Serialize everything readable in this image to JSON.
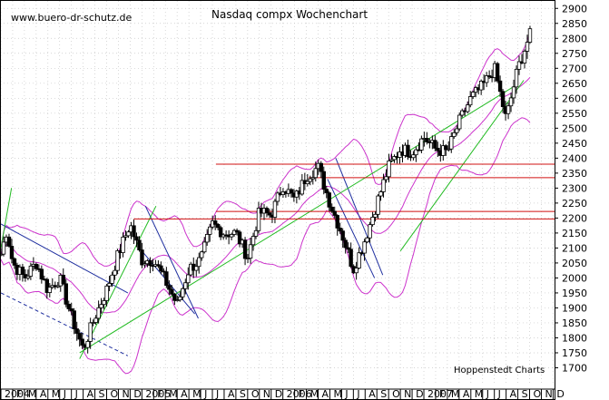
{
  "chart_data": {
    "type": "candlestick",
    "title": "Nasdaq compx Wochenchart",
    "watermark": "www.buero-dr-schutz.de",
    "credit": "Hoppenstedt Charts",
    "y_ticks": [
      1700,
      1750,
      1800,
      1850,
      1900,
      1950,
      2000,
      2050,
      2100,
      2150,
      2200,
      2250,
      2300,
      2350,
      2400,
      2450,
      2500,
      2550,
      2600,
      2650,
      2700,
      2750,
      2800,
      2850,
      2900
    ],
    "ylim": [
      1650,
      2925
    ],
    "x_ticks": [
      "2004",
      "F",
      "M",
      "A",
      "M",
      "J",
      "J",
      "A",
      "S",
      "O",
      "N",
      "D",
      "2005",
      "F",
      "M",
      "A",
      "M",
      "J",
      "J",
      "A",
      "S",
      "O",
      "N",
      "D",
      "2006",
      "F",
      "M",
      "A",
      "M",
      "J",
      "J",
      "A",
      "S",
      "O",
      "N",
      "D",
      "2007",
      "F",
      "M",
      "A",
      "M",
      "J",
      "J",
      "A",
      "S",
      "O",
      "N",
      "D"
    ],
    "horizontal_lines": [
      2380,
      2335,
      2222,
      2197
    ],
    "close_path": [
      [
        "2004-01",
        2080
      ],
      [
        "2004-01",
        2160
      ],
      [
        "2004-02",
        2050
      ],
      [
        "2004-03",
        2000
      ],
      [
        "2004-04",
        2050
      ],
      [
        "2004-05",
        1960
      ],
      [
        "2004-06",
        2000
      ],
      [
        "2004-07",
        1870
      ],
      [
        "2004-08",
        1760
      ],
      [
        "2004-09",
        1870
      ],
      [
        "2004-10",
        1960
      ],
      [
        "2004-11",
        2080
      ],
      [
        "2004-12",
        2180
      ],
      [
        "2005-01",
        2060
      ],
      [
        "2005-02",
        2060
      ],
      [
        "2005-03",
        1990
      ],
      [
        "2005-04",
        1910
      ],
      [
        "2005-05",
        2030
      ],
      [
        "2005-06",
        2060
      ],
      [
        "2005-07",
        2180
      ],
      [
        "2005-08",
        2150
      ],
      [
        "2005-09",
        2150
      ],
      [
        "2005-10",
        2070
      ],
      [
        "2005-11",
        2220
      ],
      [
        "2005-12",
        2210
      ],
      [
        "2006-01",
        2310
      ],
      [
        "2006-02",
        2260
      ],
      [
        "2006-03",
        2340
      ],
      [
        "2006-04",
        2370
      ],
      [
        "2006-05",
        2250
      ],
      [
        "2006-06",
        2150
      ],
      [
        "2006-07",
        2030
      ],
      [
        "2006-08",
        2130
      ],
      [
        "2006-09",
        2250
      ],
      [
        "2006-10",
        2370
      ],
      [
        "2006-11",
        2430
      ],
      [
        "2006-12",
        2420
      ],
      [
        "2007-01",
        2470
      ],
      [
        "2007-02",
        2430
      ],
      [
        "2007-03",
        2420
      ],
      [
        "2007-04",
        2520
      ],
      [
        "2007-05",
        2600
      ],
      [
        "2007-06",
        2640
      ],
      [
        "2007-07",
        2700
      ],
      [
        "2007-08",
        2530
      ],
      [
        "2007-09",
        2700
      ],
      [
        "2007-10",
        2810
      ]
    ]
  }
}
